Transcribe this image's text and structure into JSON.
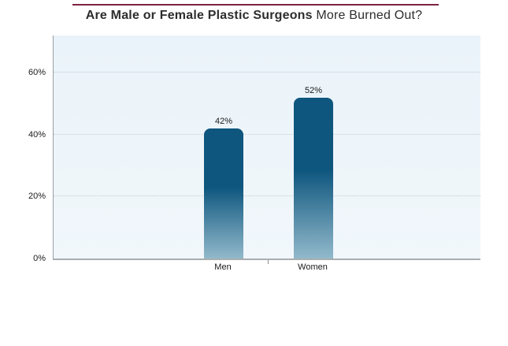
{
  "title": {
    "bold": "Are Male or Female Plastic Surgeons",
    "regular": " More Burned Out?"
  },
  "chart_data": {
    "type": "bar",
    "title": "Are Male or Female Plastic Surgeons More Burned Out?",
    "categories": [
      "Men",
      "Women"
    ],
    "values": [
      42,
      52
    ],
    "value_labels": [
      "42%",
      "52%"
    ],
    "xlabel": "",
    "ylabel": "",
    "ylim": [
      0,
      72
    ],
    "yticks": [
      0,
      20,
      40,
      60
    ],
    "ytick_labels": [
      "0%",
      "20%",
      "40%",
      "60%"
    ],
    "grid": "horizontal-dotted",
    "legend": "none"
  },
  "colors": {
    "accent_rule": "#7c2340",
    "title_text": "#2d2d2d",
    "plot_bg": "#edf5fa",
    "gridline": "#c3ccd2",
    "axis_line": "#a9adb0",
    "bar_top": "#0e567e",
    "bar_bottom": "#92b9cb",
    "label_text": "#1a1a1a"
  }
}
